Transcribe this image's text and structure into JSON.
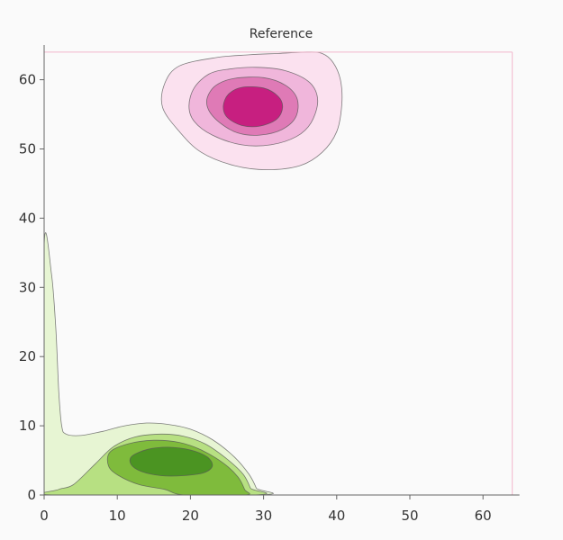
{
  "chart_data": {
    "type": "contour",
    "title": "Reference",
    "xlabel": "",
    "ylabel": "",
    "xlim": [
      0,
      64
    ],
    "ylim": [
      0,
      64
    ],
    "xticks": [
      0,
      10,
      20,
      30,
      40,
      50,
      60
    ],
    "yticks": [
      0,
      10,
      20,
      30,
      40,
      50,
      60
    ],
    "grid": false,
    "colors": {
      "pink": [
        "#fbe1ef",
        "#f0b6db",
        "#df7ab6",
        "#c71f80"
      ],
      "green": [
        "#e7f5d3",
        "#b7e082",
        "#7fbb3c",
        "#4b9422"
      ],
      "frame": "#f2b6cc",
      "axis": "#666666"
    },
    "series": [
      {
        "group": "pink",
        "levels": [
          [
            [
              23.5,
              63.2
            ],
            [
              28,
              63.6
            ],
            [
              32,
              63.8
            ],
            [
              36,
              64
            ],
            [
              38,
              63.8
            ],
            [
              39.5,
              62.5
            ],
            [
              40.5,
              60
            ],
            [
              40.7,
              56.5
            ],
            [
              40,
              52.5
            ],
            [
              38,
              49.5
            ],
            [
              35,
              47.6
            ],
            [
              30.5,
              47
            ],
            [
              26,
              47.6
            ],
            [
              21.5,
              49.5
            ],
            [
              18.5,
              52.5
            ],
            [
              16.2,
              56
            ],
            [
              16.5,
              59.5
            ],
            [
              18.5,
              62
            ]
          ],
          [
            [
              25,
              61.5
            ],
            [
              29,
              61.8
            ],
            [
              33,
              61.3
            ],
            [
              36.3,
              59.6
            ],
            [
              37.4,
              57
            ],
            [
              36.5,
              53.8
            ],
            [
              34.5,
              51.8
            ],
            [
              31,
              50.6
            ],
            [
              27,
              50.6
            ],
            [
              23,
              52
            ],
            [
              20.5,
              54
            ],
            [
              19.8,
              56.2
            ],
            [
              20.5,
              58.8
            ],
            [
              22.5,
              60.8
            ]
          ],
          [
            [
              26,
              60.2
            ],
            [
              30,
              60.3
            ],
            [
              33,
              59.2
            ],
            [
              34.6,
              57.2
            ],
            [
              34.4,
              54.6
            ],
            [
              32.5,
              52.8
            ],
            [
              29.5,
              52
            ],
            [
              26.5,
              52.3
            ],
            [
              24,
              53.8
            ],
            [
              22.5,
              55.6
            ],
            [
              22.3,
              57.4
            ],
            [
              23.5,
              59.2
            ]
          ],
          [
            [
              27,
              58.9
            ],
            [
              30,
              58.8
            ],
            [
              32,
              57.6
            ],
            [
              32.6,
              56
            ],
            [
              31.8,
              54.3
            ],
            [
              29.5,
              53.3
            ],
            [
              27,
              53.4
            ],
            [
              25,
              54.6
            ],
            [
              24.5,
              56.2
            ],
            [
              25.2,
              57.9
            ]
          ]
        ]
      },
      {
        "group": "green",
        "levels": [
          [
            [
              0,
              36
            ],
            [
              1,
              32
            ],
            [
              1.6,
              24
            ],
            [
              2,
              15
            ],
            [
              2.4,
              10
            ],
            [
              3,
              8.8
            ],
            [
              5,
              8.6
            ],
            [
              8,
              9.2
            ],
            [
              11,
              10
            ],
            [
              14,
              10.4
            ],
            [
              17,
              10.2
            ],
            [
              20,
              9.5
            ],
            [
              23,
              8
            ],
            [
              26,
              5.5
            ],
            [
              28,
              3
            ],
            [
              29,
              1
            ],
            [
              29.2,
              0
            ],
            [
              0,
              0
            ]
          ],
          [
            [
              1.5,
              0
            ],
            [
              2,
              0.8
            ],
            [
              4,
              1.5
            ],
            [
              7,
              4.5
            ],
            [
              9.5,
              7
            ],
            [
              12.5,
              8.4
            ],
            [
              16,
              8.8
            ],
            [
              19,
              8.5
            ],
            [
              22,
              7.4
            ],
            [
              25,
              5.2
            ],
            [
              27.2,
              3
            ],
            [
              28.2,
              1
            ],
            [
              28.5,
              0
            ]
          ],
          [
            [
              9,
              6.2
            ],
            [
              11.5,
              7.4
            ],
            [
              15,
              7.9
            ],
            [
              18.5,
              7.6
            ],
            [
              21.5,
              6.5
            ],
            [
              24.5,
              4.6
            ],
            [
              26.5,
              2.6
            ],
            [
              27.4,
              0.8
            ],
            [
              27.5,
              0
            ],
            [
              19.2,
              0
            ],
            [
              16.5,
              0.8
            ],
            [
              13,
              1.5
            ],
            [
              10.2,
              2.8
            ],
            [
              8.8,
              4.2
            ]
          ],
          [
            [
              12,
              5.6
            ],
            [
              14.2,
              6.6
            ],
            [
              17,
              6.9
            ],
            [
              20,
              6.5
            ],
            [
              22.3,
              5.5
            ],
            [
              23,
              4.2
            ],
            [
              21.8,
              3.2
            ],
            [
              19,
              2.8
            ],
            [
              16,
              2.8
            ],
            [
              13.3,
              3.4
            ],
            [
              11.9,
              4.4
            ]
          ]
        ]
      }
    ]
  }
}
